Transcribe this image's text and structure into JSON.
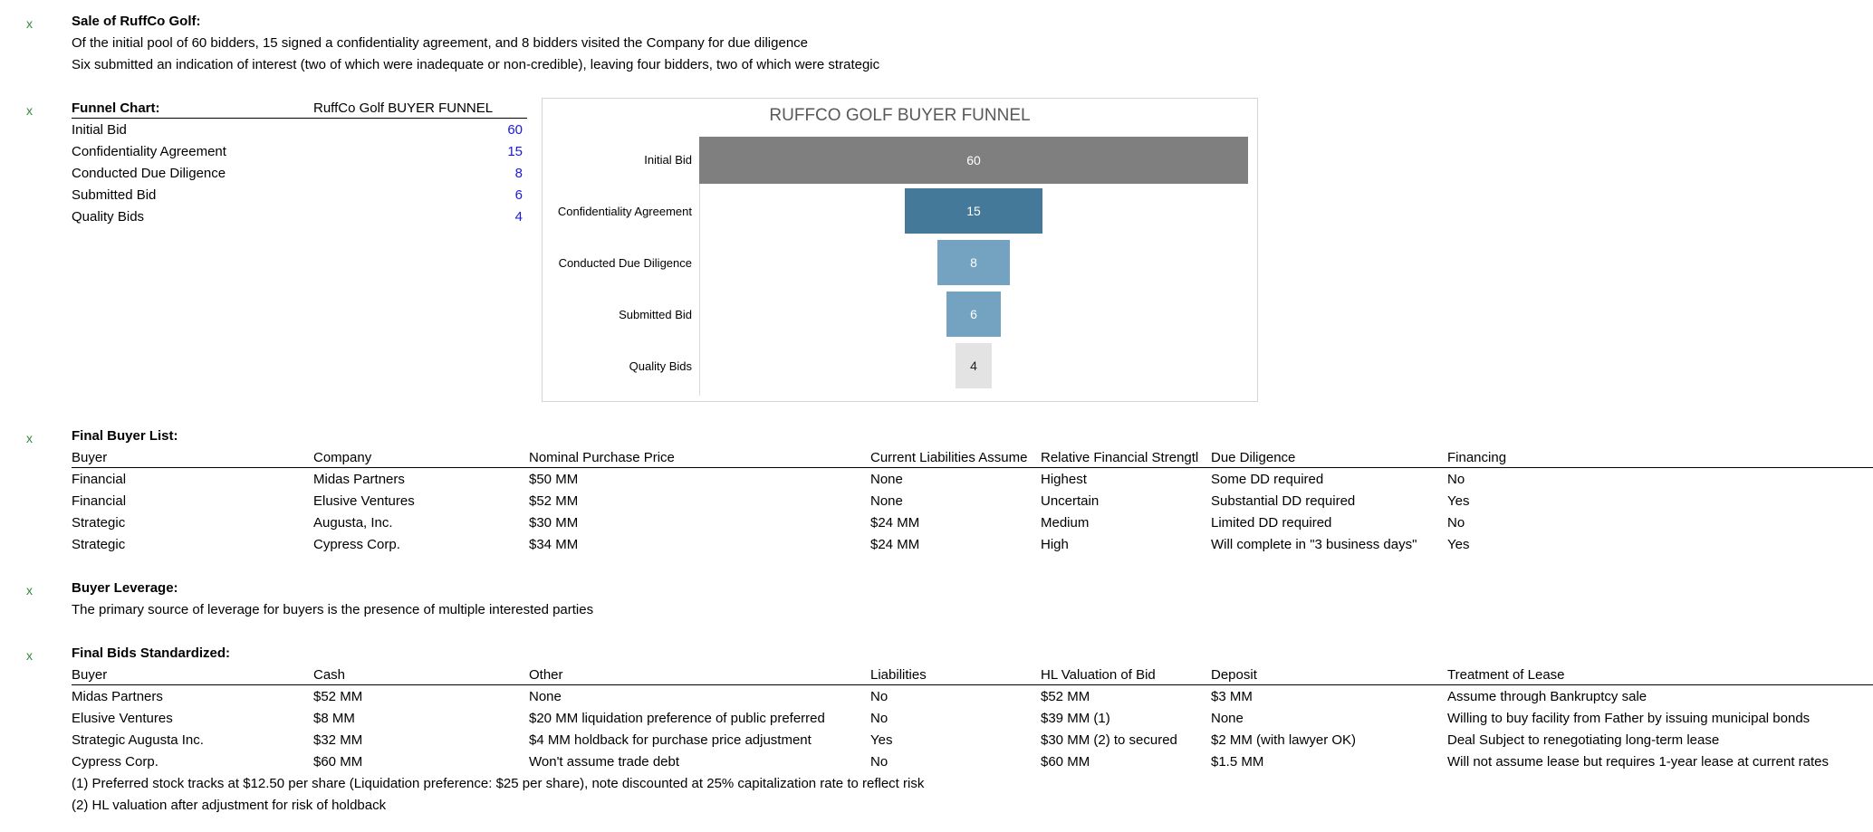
{
  "marker": "x",
  "sale": {
    "heading": "Sale of RuffCo Golf:",
    "line1": "Of the initial pool of 60 bidders, 15 signed a confidentiality agreement, and 8 bidders visited the Company for due diligence",
    "line2": "Six submitted an indication of interest (two of which were inadequate or non-credible), leaving four bidders, two of which were strategic"
  },
  "funnel": {
    "heading": "Funnel Chart:",
    "table_title": "RuffCo Golf BUYER FUNNEL",
    "rows": [
      {
        "label": "Initial Bid",
        "value": "60"
      },
      {
        "label": "Confidentiality Agreement",
        "value": "15"
      },
      {
        "label": "Conducted Due Diligence",
        "value": "8"
      },
      {
        "label": "Submitted Bid",
        "value": "6"
      },
      {
        "label": "Quality Bids",
        "value": "4"
      }
    ]
  },
  "chart_data": {
    "type": "bar",
    "subtype": "funnel",
    "title": "RUFFCO GOLF BUYER FUNNEL",
    "categories": [
      "Initial Bid",
      "Confidentiality Agreement",
      "Conducted Due Diligence",
      "Submitted Bid",
      "Quality Bids"
    ],
    "values": [
      60,
      15,
      8,
      6,
      4
    ],
    "colors": [
      "#7f7f7f",
      "#44799a",
      "#73a3c1",
      "#73a3c1",
      "#e3e3e3"
    ],
    "label_colors": [
      "#ffffff",
      "#ffffff",
      "#ffffff",
      "#ffffff",
      "#222222"
    ]
  },
  "buyers": {
    "heading": "Final Buyer List:",
    "columns": [
      "Buyer",
      "Company",
      "Nominal Purchase Price",
      "Current Liabilities Assume",
      "Relative Financial Strengtl",
      "Due Diligence",
      "Financing"
    ],
    "rows": [
      [
        "Financial",
        "Midas Partners",
        "$50 MM",
        "None",
        "Highest",
        "Some DD required",
        "No"
      ],
      [
        "Financial",
        "Elusive Ventures",
        "$52 MM",
        "None",
        "Uncertain",
        "Substantial DD required",
        "Yes"
      ],
      [
        "Strategic",
        "Augusta, Inc.",
        "$30 MM",
        "$24 MM",
        "Medium",
        "Limited DD required",
        "No"
      ],
      [
        "Strategic",
        "Cypress Corp.",
        "$34 MM",
        "$24 MM",
        "High",
        "Will complete in \"3 business days\"",
        "Yes"
      ]
    ]
  },
  "leverage": {
    "heading": "Buyer Leverage:",
    "text": "The primary source of leverage for buyers is the presence of multiple interested parties"
  },
  "bids": {
    "heading": "Final Bids Standardized:",
    "columns": [
      "Buyer",
      "Cash",
      "Other",
      "Liabilities",
      "HL Valuation of Bid",
      "Deposit",
      "Treatment of Lease"
    ],
    "rows": [
      [
        "Midas Partners",
        "$52 MM",
        "None",
        "No",
        "$52 MM",
        "$3 MM",
        "Assume through Bankruptcy sale"
      ],
      [
        "Elusive Ventures",
        "$8 MM",
        "$20 MM liquidation preference of public preferred",
        "No",
        "$39 MM (1)",
        "None",
        "Willing to buy facility from Father by issuing municipal bonds"
      ],
      [
        "Strategic Augusta Inc.",
        "$32 MM",
        "$4 MM holdback for purchase price adjustment",
        "Yes",
        "$30 MM (2) to secured",
        "$2 MM (with lawyer OK)",
        "Deal Subject to renegotiating long-term lease"
      ],
      [
        "Cypress Corp.",
        "$60 MM",
        "Won't assume trade debt",
        "No",
        "$60 MM",
        "$1.5 MM",
        "Will not assume lease but requires 1-year lease at current rates"
      ]
    ],
    "note1": "(1) Preferred stock tracks at $12.50 per share (Liquidation preference: $25 per share), note discounted at 25% capitalization rate to reflect risk",
    "note2": "(2) HL valuation after adjustment for risk of holdback"
  }
}
